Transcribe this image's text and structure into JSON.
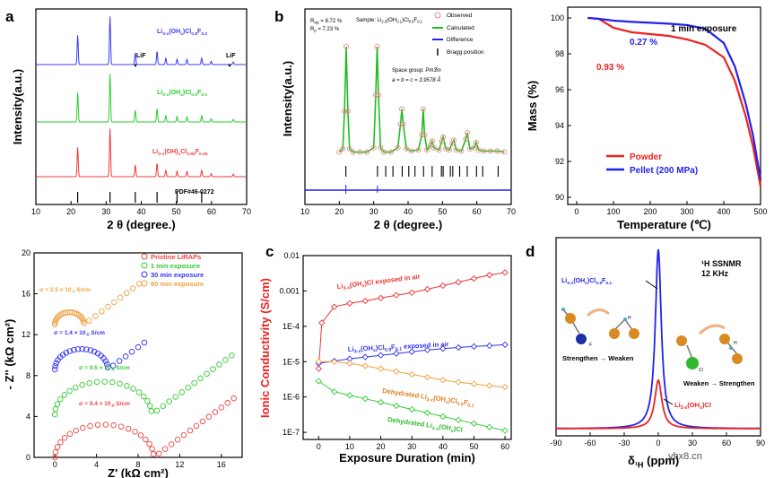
{
  "chart_data": [
    {
      "panel": "a",
      "type": "line",
      "title": "",
      "xlabel": "2 θ (degree.)",
      "ylabel": "Intensity(a.u.)",
      "xlim": [
        10,
        70
      ],
      "xticks": [
        "10",
        "20",
        "30",
        "40",
        "50",
        "60",
        "70"
      ],
      "series": [
        {
          "name": "Li3-x(OHx)Cl0.8F0.2",
          "color": "#3a3af0",
          "peaks": [
            21.9,
            31.1,
            38.3,
            44.5,
            47.0,
            50.2,
            53.0,
            57.2,
            59.9,
            66.2
          ],
          "heights": [
            0.55,
            0.9,
            0.22,
            0.25,
            0.12,
            0.1,
            0.1,
            0.12,
            0.06,
            0.05
          ]
        },
        {
          "name": "Li3-x(OHx)Cl0.9F0.1",
          "color": "#2ecc2e",
          "peaks": [
            21.9,
            31.1,
            38.3,
            44.5,
            47.0,
            50.2,
            53.0,
            57.2,
            59.9,
            66.2
          ],
          "heights": [
            0.55,
            0.9,
            0.22,
            0.25,
            0.12,
            0.1,
            0.1,
            0.12,
            0.06,
            0.05
          ]
        },
        {
          "name": "Li3-x(OH)xCl0.95F0.05",
          "color": "#ee3a3a",
          "peaks": [
            21.9,
            31.1,
            38.3,
            44.5,
            47.0,
            50.2,
            53.0,
            57.2,
            59.9,
            66.2
          ],
          "heights": [
            0.55,
            0.9,
            0.22,
            0.25,
            0.12,
            0.1,
            0.1,
            0.12,
            0.06,
            0.05
          ]
        }
      ],
      "reference": {
        "name": "PDF#46-0272",
        "positions": [
          21.9,
          31.1,
          38.3,
          44.5,
          50.2,
          57.2
        ]
      },
      "annotations": [
        "LiF",
        "LiF"
      ],
      "label_parts": {
        "s1": [
          "Li",
          "3-x",
          "(OH",
          "x",
          ")Cl",
          "0.8",
          "F",
          "0.2"
        ],
        "s2": [
          "Li",
          "3-x",
          "(OH",
          "x",
          ")Cl",
          "0.9",
          "F",
          "0.1"
        ],
        "s3": [
          "Li",
          "3-x",
          "(OH)",
          "x",
          "Cl",
          "0.95",
          "F",
          "0.05"
        ]
      }
    },
    {
      "panel": "b",
      "type": "scatter",
      "xlabel": "2 θ (degree.)",
      "ylabel": "Intensity(a.u.)",
      "xlim": [
        10,
        70
      ],
      "xticks": [
        "10",
        "20",
        "30",
        "40",
        "50",
        "60",
        "70"
      ],
      "rwp": "R",
      "rwp_sub": "wp",
      "rwp_value": " = 8.72 %",
      "rp": "R",
      "rp_sub": "p",
      "rp_value": " = 7.23 %",
      "sample_parts": [
        "Sample: Li",
        "2.9",
        "(OH",
        "0.1",
        ")Cl",
        "0.9",
        "F",
        "0.1"
      ],
      "space_group_label": "Space group: ",
      "space_group": "Pm3̄m",
      "lattice": "a = b = c = 3.9578 Å",
      "legend": [
        "Observed",
        "Calculated",
        "Difference",
        "Bragg position"
      ],
      "observed_x": [
        20.0,
        21.0,
        21.5,
        22.0,
        22.5,
        23.0,
        24.0,
        26.0,
        28.0,
        30.0,
        30.6,
        31.0,
        31.4,
        32.0,
        33.0,
        35.0,
        37.0,
        37.8,
        38.2,
        38.6,
        39.5,
        41.0,
        43.0,
        44.0,
        44.4,
        44.8,
        45.5,
        46.5,
        47.0,
        47.5,
        49.0,
        49.8,
        50.2,
        51.0,
        52.0,
        52.8,
        53.3,
        54.0,
        55.5,
        56.8,
        57.2,
        58.0,
        59.2,
        59.8,
        60.5,
        62.0,
        64.0,
        66.0,
        68.0
      ],
      "observed_y": [
        2,
        5,
        40,
        100,
        40,
        5,
        2,
        2,
        2,
        6,
        55,
        100,
        55,
        6,
        2,
        2,
        6,
        28,
        42,
        28,
        5,
        3,
        4,
        18,
        42,
        18,
        4,
        8,
        12,
        6,
        4,
        12,
        16,
        5,
        4,
        10,
        13,
        4,
        3,
        14,
        20,
        5,
        6,
        11,
        4,
        3,
        3,
        3,
        2
      ],
      "bragg_positions": [
        21.9,
        31.1,
        33.5,
        35.6,
        38.3,
        40.2,
        42.0,
        44.5,
        47.0,
        49.7,
        50.2,
        52.3,
        53.0,
        55.0,
        57.2,
        59.9,
        61.7,
        66.2
      ],
      "difference": "Difference"
    },
    {
      "panel": "c-top",
      "type": "line",
      "xlabel": "Temperature (℃)",
      "ylabel": "Mass (%)",
      "xlim": [
        0,
        500
      ],
      "ylim": [
        90,
        100.5
      ],
      "xticks": [
        "0",
        "100",
        "200",
        "300",
        "400",
        "500"
      ],
      "yticks": [
        "90",
        "92",
        "94",
        "96",
        "98",
        "100"
      ],
      "title": "1 min exposure",
      "series": [
        {
          "name": "Powder",
          "color": "#ee2222",
          "x": [
            30,
            60,
            100,
            150,
            200,
            250,
            300,
            350,
            400,
            430,
            460,
            480,
            500
          ],
          "y": [
            100,
            99.95,
            99.45,
            99.2,
            99.1,
            99.0,
            98.8,
            98.5,
            97.8,
            96.5,
            94.5,
            92.8,
            90.6
          ]
        },
        {
          "name": "Pellet (200 MPa)",
          "color": "#2222ee",
          "x": [
            30,
            60,
            100,
            150,
            200,
            250,
            300,
            350,
            400,
            430,
            460,
            480,
            500
          ],
          "y": [
            100,
            99.95,
            99.85,
            99.78,
            99.73,
            99.68,
            99.6,
            99.4,
            98.6,
            97.3,
            95.2,
            93.4,
            91.0
          ]
        }
      ],
      "annotations": [
        "0.27 %",
        "0.93 %"
      ]
    },
    {
      "panel": "nyquist",
      "type": "scatter",
      "xlabel": "Z' (kΩ cm²)",
      "ylabel": "- Z'' (kΩ cm²)",
      "xlim": [
        -2,
        18
      ],
      "ylim": [
        0,
        20
      ],
      "xticks": [
        "0",
        "4",
        "8",
        "12",
        "16"
      ],
      "yticks": [
        "0",
        "4",
        "8",
        "12",
        "16",
        "20"
      ],
      "series": [
        {
          "name": "Pristine LiRAPs",
          "color": "#ee4444",
          "offset": 0,
          "arc_end": 9.5,
          "arc_h": 3.2,
          "tail_end": 17.6
        },
        {
          "name": "1 min exposure",
          "color": "#33cc33",
          "offset": 4.2,
          "arc_end": 9.3,
          "arc_h": 3.2,
          "tail_end": 17.5
        },
        {
          "name": "30 min exposure",
          "color": "#3333ee",
          "offset": 8.6,
          "arc_end": 5.1,
          "arc_h": 2.0,
          "tail_end": 9.0
        },
        {
          "name": "60 min exposure",
          "color": "#f0a040",
          "offset": 13.0,
          "arc_end": 2.8,
          "arc_h": 1.2,
          "tail_end": 8.3
        }
      ],
      "labels": [
        {
          "text": "σ = 2.5 × 10",
          "exp": "-5",
          "unit": " S/cm",
          "color": "#f0a040"
        },
        {
          "text": "σ = 1.4 × 10",
          "exp": "-5",
          "unit": " S/cm",
          "color": "#3333ee"
        },
        {
          "text": "σ = 9.5 × 10",
          "exp": "-6",
          "unit": " S/cm",
          "color": "#33cc33"
        },
        {
          "text": "σ = 9.4 × 10",
          "exp": "-6",
          "unit": " S/cm",
          "color": "#ee4444"
        }
      ]
    },
    {
      "panel": "c",
      "type": "line",
      "xlabel": "Exposure Duration (min)",
      "ylabel": "Ionic Conductivity (S/cm)",
      "xlim": [
        -5,
        62
      ],
      "xticks": [
        "0",
        "10",
        "20",
        "30",
        "40",
        "50",
        "60"
      ],
      "yticks": [
        "1E-7",
        "1E-6",
        "1E-5",
        "1E-4",
        "0.001",
        "0.01"
      ],
      "series": [
        {
          "name": "Li3-x(OHx)Cl exposed in air",
          "color": "#ee3333",
          "x": [
            0,
            1,
            5,
            10,
            15,
            20,
            25,
            30,
            35,
            40,
            45,
            50,
            55,
            60
          ],
          "log10y": [
            -5.2,
            -3.9,
            -3.45,
            -3.35,
            -3.28,
            -3.2,
            -3.12,
            -3.05,
            -2.95,
            -2.85,
            -2.75,
            -2.65,
            -2.55,
            -2.48
          ]
        },
        {
          "name": "Li3-x(OHx)Cl0.9F0.1 exposed in air",
          "color": "#3333ee",
          "x": [
            0,
            5,
            10,
            15,
            20,
            25,
            30,
            35,
            40,
            45,
            50,
            55,
            60
          ],
          "log10y": [
            -5.05,
            -4.98,
            -4.92,
            -4.87,
            -4.82,
            -4.77,
            -4.72,
            -4.67,
            -4.63,
            -4.6,
            -4.57,
            -4.55,
            -4.52
          ]
        },
        {
          "name": "Dehydrated Li3-x(OHx)Cl0.9F0.1",
          "color": "#f0a040",
          "x": [
            0,
            5,
            10,
            15,
            20,
            25,
            30,
            35,
            40,
            45,
            50,
            55,
            60
          ],
          "log10y": [
            -5.0,
            -5.0,
            -5.05,
            -5.12,
            -5.2,
            -5.28,
            -5.36,
            -5.44,
            -5.52,
            -5.58,
            -5.63,
            -5.68,
            -5.72
          ]
        },
        {
          "name": "Dehydrated Li3-x(OHx)Cl",
          "color": "#33cc33",
          "x": [
            0,
            5,
            10,
            15,
            20,
            25,
            30,
            35,
            40,
            45,
            50,
            55,
            60
          ],
          "log10y": [
            -5.55,
            -5.85,
            -5.95,
            -6.05,
            -6.15,
            -6.25,
            -6.35,
            -6.45,
            -6.55,
            -6.65,
            -6.75,
            -6.85,
            -6.95
          ]
        }
      ],
      "labels": [
        {
          "parts": [
            "Li",
            "3-x",
            "(OH",
            "x",
            ")Cl exposed in air"
          ],
          "color": "#ee3333"
        },
        {
          "parts": [
            "Li",
            "3-x",
            "(OH",
            "x",
            ")Cl",
            "0.9",
            "F",
            "0.1",
            " exposed in air"
          ],
          "color": "#3333ee"
        },
        {
          "parts": [
            "Dehydrated Li",
            "3-x",
            "(OH",
            "x",
            ")Cl",
            "0.9",
            "F",
            "0.1"
          ],
          "color": "#e08020"
        },
        {
          "parts": [
            "Dehydrated Li",
            "3-x",
            "(OH",
            "x",
            ")Cl"
          ],
          "color": "#33bb33"
        }
      ]
    },
    {
      "panel": "d",
      "type": "line",
      "xlabel": "δ",
      "xlabel_sub": "¹H",
      "xlabel_unit": " (ppm)",
      "xlim": [
        -90,
        90
      ],
      "xticks": [
        "-90",
        "-60",
        "-30",
        "0",
        "30",
        "60",
        "90"
      ],
      "title_lines": [
        "¹H SSNMR",
        "12 KHz"
      ],
      "series": [
        {
          "name": "Li3-x(OHx)Cl0.9F0.1",
          "color": "#2222ee",
          "center": 0,
          "height": 1.0
        },
        {
          "name": "Li3-x(OHx)Cl",
          "color": "#ee2222",
          "center": 0,
          "height": 0.27
        }
      ],
      "labels": [
        {
          "parts": [
            "Li",
            "3-x",
            "(OH",
            "x",
            ")Cl",
            "0.9",
            "F",
            "0.1"
          ],
          "color": "#2222ee"
        },
        {
          "parts": [
            "Li",
            "3-x",
            "(OH",
            "x",
            ")Cl"
          ],
          "color": "#ee2222"
        }
      ],
      "insets": [
        "Strengthen → Weaken",
        "Weaken → Strengthen"
      ],
      "atom_labels": [
        "F",
        "Cl",
        "H",
        "H"
      ]
    }
  ],
  "panel_letters": [
    "a",
    "b",
    "c",
    "d"
  ],
  "watermark": "ybx8.cn"
}
